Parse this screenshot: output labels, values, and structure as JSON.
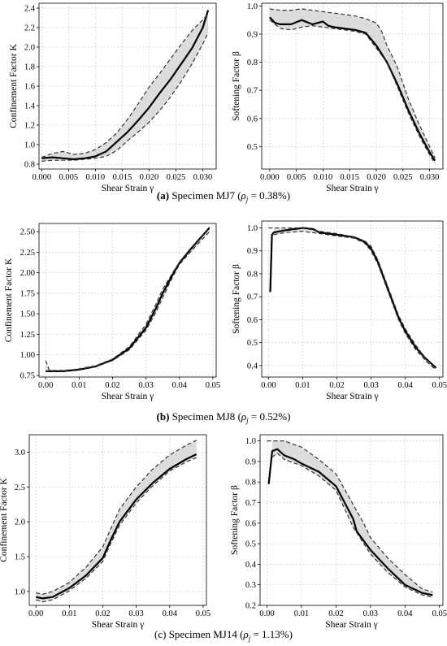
{
  "figure": {
    "rows": [
      {
        "caption": {
          "label": "(a)",
          "text": "Specimen MJ7",
          "rho_value": "0.38%"
        },
        "charts": [
          0,
          1
        ]
      },
      {
        "caption": {
          "label": "(b)",
          "text": "Specimen MJ8",
          "rho_value": "0.52%"
        },
        "charts": [
          2,
          3
        ]
      },
      {
        "caption": {
          "label": "(c)",
          "text": "Specimen MJ14",
          "rho_value": "1.13%"
        },
        "charts": [
          4,
          5
        ]
      }
    ]
  },
  "chart_data": [
    {
      "type": "line",
      "id": "mj7-k",
      "xlabel": "Shear Strain γ",
      "ylabel": "Confinement Factor K",
      "xlim": [
        -0.0005,
        0.0325
      ],
      "ylim": [
        0.75,
        2.45
      ],
      "xticks": [
        "0.000",
        "0.005",
        "0.010",
        "0.015",
        "0.020",
        "0.025",
        "0.030"
      ],
      "xtick_values": [
        0,
        0.005,
        0.01,
        0.015,
        0.02,
        0.025,
        0.03
      ],
      "yticks": [
        "0.8",
        "1.0",
        "1.2",
        "1.4",
        "1.6",
        "1.8",
        "2.0",
        "2.2",
        "2.4"
      ],
      "ytick_values": [
        0.8,
        1.0,
        1.2,
        1.4,
        1.6,
        1.8,
        2.0,
        2.2,
        2.4
      ],
      "grid": true,
      "series": [
        {
          "style": "mean",
          "x": [
            0,
            0.002,
            0.004,
            0.006,
            0.008,
            0.01,
            0.012,
            0.014,
            0.016,
            0.018,
            0.02,
            0.022,
            0.024,
            0.026,
            0.028,
            0.03,
            0.031
          ],
          "y": [
            0.86,
            0.87,
            0.86,
            0.85,
            0.86,
            0.88,
            0.93,
            1.03,
            1.13,
            1.25,
            1.38,
            1.53,
            1.67,
            1.83,
            1.99,
            2.2,
            2.38
          ]
        },
        {
          "style": "upper",
          "x": [
            0,
            0.002,
            0.004,
            0.006,
            0.008,
            0.01,
            0.012,
            0.014,
            0.016,
            0.018,
            0.02,
            0.022,
            0.024,
            0.026,
            0.028,
            0.03,
            0.031
          ],
          "y": [
            0.87,
            0.91,
            0.93,
            0.9,
            0.91,
            0.95,
            1.02,
            1.12,
            1.26,
            1.42,
            1.59,
            1.73,
            1.88,
            2.03,
            2.17,
            2.28,
            2.34
          ]
        },
        {
          "style": "lower",
          "x": [
            0,
            0.002,
            0.004,
            0.006,
            0.008,
            0.01,
            0.012,
            0.014,
            0.016,
            0.018,
            0.02,
            0.022,
            0.024,
            0.026,
            0.028,
            0.03,
            0.031
          ],
          "y": [
            0.83,
            0.84,
            0.84,
            0.84,
            0.85,
            0.86,
            0.88,
            0.94,
            1.04,
            1.13,
            1.23,
            1.35,
            1.49,
            1.65,
            1.83,
            2.03,
            2.15
          ]
        }
      ]
    },
    {
      "type": "line",
      "id": "mj7-beta",
      "xlabel": "Shear Strain γ",
      "ylabel": "Softening Factor β",
      "xlim": [
        -0.0015,
        0.0325
      ],
      "ylim": [
        0.42,
        1.01
      ],
      "xticks": [
        "0.000",
        "0.005",
        "0.010",
        "0.015",
        "0.020",
        "0.025",
        "0.030"
      ],
      "xtick_values": [
        0,
        0.005,
        0.01,
        0.015,
        0.02,
        0.025,
        0.03
      ],
      "yticks": [
        "0.5",
        "0.6",
        "0.7",
        "0.8",
        "0.9",
        "1.0"
      ],
      "ytick_values": [
        0.5,
        0.6,
        0.7,
        0.8,
        0.9,
        1.0
      ],
      "grid": true,
      "series": [
        {
          "style": "mean",
          "x": [
            0,
            0.001,
            0.002,
            0.004,
            0.006,
            0.008,
            0.01,
            0.011,
            0.012,
            0.014,
            0.016,
            0.018,
            0.02,
            0.022,
            0.024,
            0.026,
            0.028,
            0.03,
            0.031
          ],
          "y": [
            0.96,
            0.94,
            0.935,
            0.935,
            0.95,
            0.935,
            0.945,
            0.93,
            0.925,
            0.92,
            0.915,
            0.905,
            0.86,
            0.8,
            0.72,
            0.63,
            0.55,
            0.48,
            0.45
          ]
        },
        {
          "style": "upper",
          "x": [
            0,
            0.002,
            0.004,
            0.006,
            0.008,
            0.01,
            0.012,
            0.014,
            0.016,
            0.018,
            0.02,
            0.021,
            0.022,
            0.024,
            0.026,
            0.028,
            0.03,
            0.031
          ],
          "y": [
            0.99,
            0.985,
            0.985,
            0.99,
            0.985,
            0.98,
            0.975,
            0.97,
            0.965,
            0.955,
            0.94,
            0.91,
            0.86,
            0.78,
            0.67,
            0.58,
            0.5,
            0.46
          ]
        },
        {
          "style": "lower",
          "x": [
            0,
            0.002,
            0.004,
            0.006,
            0.008,
            0.01,
            0.012,
            0.014,
            0.016,
            0.018,
            0.02,
            0.022,
            0.024,
            0.026,
            0.028,
            0.03,
            0.031
          ],
          "y": [
            0.95,
            0.92,
            0.915,
            0.925,
            0.93,
            0.925,
            0.92,
            0.915,
            0.91,
            0.9,
            0.85,
            0.8,
            0.71,
            0.62,
            0.54,
            0.47,
            0.44
          ]
        }
      ]
    },
    {
      "type": "line",
      "id": "mj8-k",
      "xlabel": "Shear Strain γ",
      "ylabel": "Confinement Factor K",
      "xlim": [
        -0.002,
        0.051
      ],
      "ylim": [
        0.73,
        2.6
      ],
      "xticks": [
        "0.00",
        "0.01",
        "0.02",
        "0.03",
        "0.04",
        "0.05"
      ],
      "xtick_values": [
        0,
        0.01,
        0.02,
        0.03,
        0.04,
        0.05
      ],
      "yticks": [
        "0.75",
        "1.00",
        "1.25",
        "1.50",
        "1.75",
        "2.00",
        "2.25",
        "2.50"
      ],
      "ytick_values": [
        0.75,
        1.0,
        1.25,
        1.5,
        1.75,
        2.0,
        2.25,
        2.5
      ],
      "grid": true,
      "series": [
        {
          "style": "mean",
          "x": [
            0,
            0.002,
            0.005,
            0.01,
            0.015,
            0.02,
            0.025,
            0.03,
            0.033,
            0.035,
            0.038,
            0.04,
            0.043,
            0.046,
            0.049
          ],
          "y": [
            0.8,
            0.8,
            0.8,
            0.82,
            0.86,
            0.94,
            1.08,
            1.33,
            1.57,
            1.75,
            1.98,
            2.12,
            2.27,
            2.41,
            2.55
          ]
        },
        {
          "style": "upper",
          "x": [
            0,
            0.0005,
            0.001,
            0.002,
            0.005,
            0.01,
            0.015,
            0.02,
            0.025,
            0.03,
            0.033,
            0.035,
            0.038,
            0.04,
            0.043,
            0.046,
            0.049
          ],
          "y": [
            0.93,
            0.88,
            0.82,
            0.81,
            0.81,
            0.83,
            0.87,
            0.95,
            1.1,
            1.37,
            1.62,
            1.8,
            2.0,
            2.13,
            2.28,
            2.42,
            2.55
          ]
        },
        {
          "style": "lower",
          "x": [
            0,
            0.002,
            0.005,
            0.01,
            0.015,
            0.02,
            0.025,
            0.03,
            0.033,
            0.035,
            0.038,
            0.04,
            0.043,
            0.046,
            0.049
          ],
          "y": [
            0.8,
            0.8,
            0.8,
            0.82,
            0.86,
            0.93,
            1.06,
            1.3,
            1.52,
            1.7,
            1.95,
            2.1,
            2.24,
            2.37,
            2.5
          ]
        }
      ]
    },
    {
      "type": "line",
      "id": "mj8-beta",
      "xlabel": "Shear Strain γ",
      "ylabel": "Softening Factor β",
      "xlim": [
        -0.002,
        0.051
      ],
      "ylim": [
        0.35,
        1.03
      ],
      "xticks": [
        "0.00",
        "0.01",
        "0.02",
        "0.03",
        "0.04",
        "0.05"
      ],
      "xtick_values": [
        0,
        0.01,
        0.02,
        0.03,
        0.04,
        0.05
      ],
      "yticks": [
        "0.4",
        "0.5",
        "0.6",
        "0.7",
        "0.8",
        "0.9",
        "1.0"
      ],
      "ytick_values": [
        0.4,
        0.5,
        0.6,
        0.7,
        0.8,
        0.9,
        1.0
      ],
      "grid": true,
      "series": [
        {
          "style": "mean",
          "x": [
            0.0005,
            0.001,
            0.0015,
            0.005,
            0.01,
            0.013,
            0.015,
            0.02,
            0.025,
            0.028,
            0.03,
            0.032,
            0.035,
            0.038,
            0.04,
            0.043,
            0.046,
            0.049
          ],
          "y": [
            0.72,
            0.97,
            0.98,
            0.99,
            1.0,
            0.995,
            0.98,
            0.97,
            0.96,
            0.94,
            0.91,
            0.85,
            0.73,
            0.61,
            0.55,
            0.48,
            0.43,
            0.39
          ]
        },
        {
          "style": "upper",
          "x": [
            0,
            0.005,
            0.01,
            0.015,
            0.02,
            0.025,
            0.028,
            0.03,
            0.032,
            0.035,
            0.038,
            0.04,
            0.043,
            0.046,
            0.049
          ],
          "y": [
            1.0,
            1.0,
            1.0,
            0.985,
            0.975,
            0.96,
            0.945,
            0.92,
            0.86,
            0.74,
            0.62,
            0.56,
            0.49,
            0.43,
            0.385
          ]
        },
        {
          "style": "lower",
          "x": [
            0.0015,
            0.005,
            0.01,
            0.015,
            0.02,
            0.025,
            0.028,
            0.03,
            0.032,
            0.035,
            0.038,
            0.04,
            0.043,
            0.046,
            0.049
          ],
          "y": [
            0.97,
            0.98,
            0.985,
            0.975,
            0.965,
            0.955,
            0.935,
            0.9,
            0.84,
            0.72,
            0.6,
            0.54,
            0.47,
            0.42,
            0.38
          ]
        }
      ]
    },
    {
      "type": "line",
      "id": "mj14-k",
      "xlabel": "Shear Strain γ",
      "ylabel": "Confinement Factor K",
      "xlim": [
        -0.002,
        0.051
      ],
      "ylim": [
        0.8,
        3.25
      ],
      "xticks": [
        "0.00",
        "0.01",
        "0.02",
        "0.03",
        "0.04",
        "0.05"
      ],
      "xtick_values": [
        0,
        0.01,
        0.02,
        0.03,
        0.04,
        0.05
      ],
      "yticks": [
        "1.0",
        "1.5",
        "2.0",
        "2.5",
        "3.0"
      ],
      "ytick_values": [
        1.0,
        1.5,
        2.0,
        2.5,
        3.0
      ],
      "grid": true,
      "series": [
        {
          "style": "mean",
          "x": [
            0,
            0.002,
            0.005,
            0.01,
            0.015,
            0.02,
            0.022,
            0.025,
            0.03,
            0.035,
            0.04,
            0.045,
            0.048
          ],
          "y": [
            0.92,
            0.9,
            0.92,
            1.05,
            1.23,
            1.48,
            1.7,
            2.0,
            2.32,
            2.56,
            2.76,
            2.9,
            2.97
          ]
        },
        {
          "style": "upper",
          "x": [
            0,
            0.002,
            0.005,
            0.01,
            0.015,
            0.02,
            0.022,
            0.025,
            0.03,
            0.035,
            0.04,
            0.045,
            0.048
          ],
          "y": [
            0.98,
            0.96,
            1.0,
            1.13,
            1.35,
            1.64,
            1.86,
            2.18,
            2.5,
            2.76,
            2.96,
            3.1,
            3.17
          ]
        },
        {
          "style": "lower",
          "x": [
            0,
            0.002,
            0.005,
            0.01,
            0.015,
            0.02,
            0.022,
            0.025,
            0.03,
            0.035,
            0.04,
            0.045,
            0.048
          ],
          "y": [
            0.88,
            0.85,
            0.88,
            1.01,
            1.19,
            1.43,
            1.65,
            1.95,
            2.27,
            2.52,
            2.73,
            2.86,
            2.92
          ]
        }
      ]
    },
    {
      "type": "line",
      "id": "mj14-beta",
      "xlabel": "Shear Strain γ",
      "ylabel": "Softening Factor β",
      "xlim": [
        -0.002,
        0.051
      ],
      "ylim": [
        0.2,
        1.03
      ],
      "xticks": [
        "0.00",
        "0.01",
        "0.02",
        "0.03",
        "0.04",
        "0.05"
      ],
      "xtick_values": [
        0,
        0.01,
        0.02,
        0.03,
        0.04,
        0.05
      ],
      "yticks": [
        "0.2",
        "0.3",
        "0.4",
        "0.5",
        "0.6",
        "0.7",
        "0.8",
        "0.9",
        "1.0"
      ],
      "ytick_values": [
        0.2,
        0.3,
        0.4,
        0.5,
        0.6,
        0.7,
        0.8,
        0.9,
        1.0
      ],
      "grid": true,
      "series": [
        {
          "style": "mean",
          "x": [
            0.0005,
            0.0015,
            0.003,
            0.005,
            0.008,
            0.01,
            0.015,
            0.02,
            0.025,
            0.026,
            0.03,
            0.035,
            0.04,
            0.045,
            0.048
          ],
          "y": [
            0.79,
            0.95,
            0.96,
            0.93,
            0.91,
            0.89,
            0.85,
            0.78,
            0.62,
            0.56,
            0.47,
            0.38,
            0.3,
            0.26,
            0.25
          ]
        },
        {
          "style": "upper",
          "x": [
            0,
            0.005,
            0.01,
            0.015,
            0.02,
            0.025,
            0.028,
            0.03,
            0.035,
            0.04,
            0.045,
            0.048
          ],
          "y": [
            1.0,
            1.0,
            0.97,
            0.91,
            0.84,
            0.69,
            0.6,
            0.53,
            0.43,
            0.35,
            0.28,
            0.265
          ]
        },
        {
          "style": "lower",
          "x": [
            0.0015,
            0.003,
            0.005,
            0.01,
            0.015,
            0.02,
            0.025,
            0.03,
            0.035,
            0.04,
            0.045,
            0.048
          ],
          "y": [
            0.92,
            0.94,
            0.91,
            0.88,
            0.83,
            0.76,
            0.58,
            0.45,
            0.36,
            0.29,
            0.25,
            0.24
          ]
        }
      ]
    }
  ]
}
